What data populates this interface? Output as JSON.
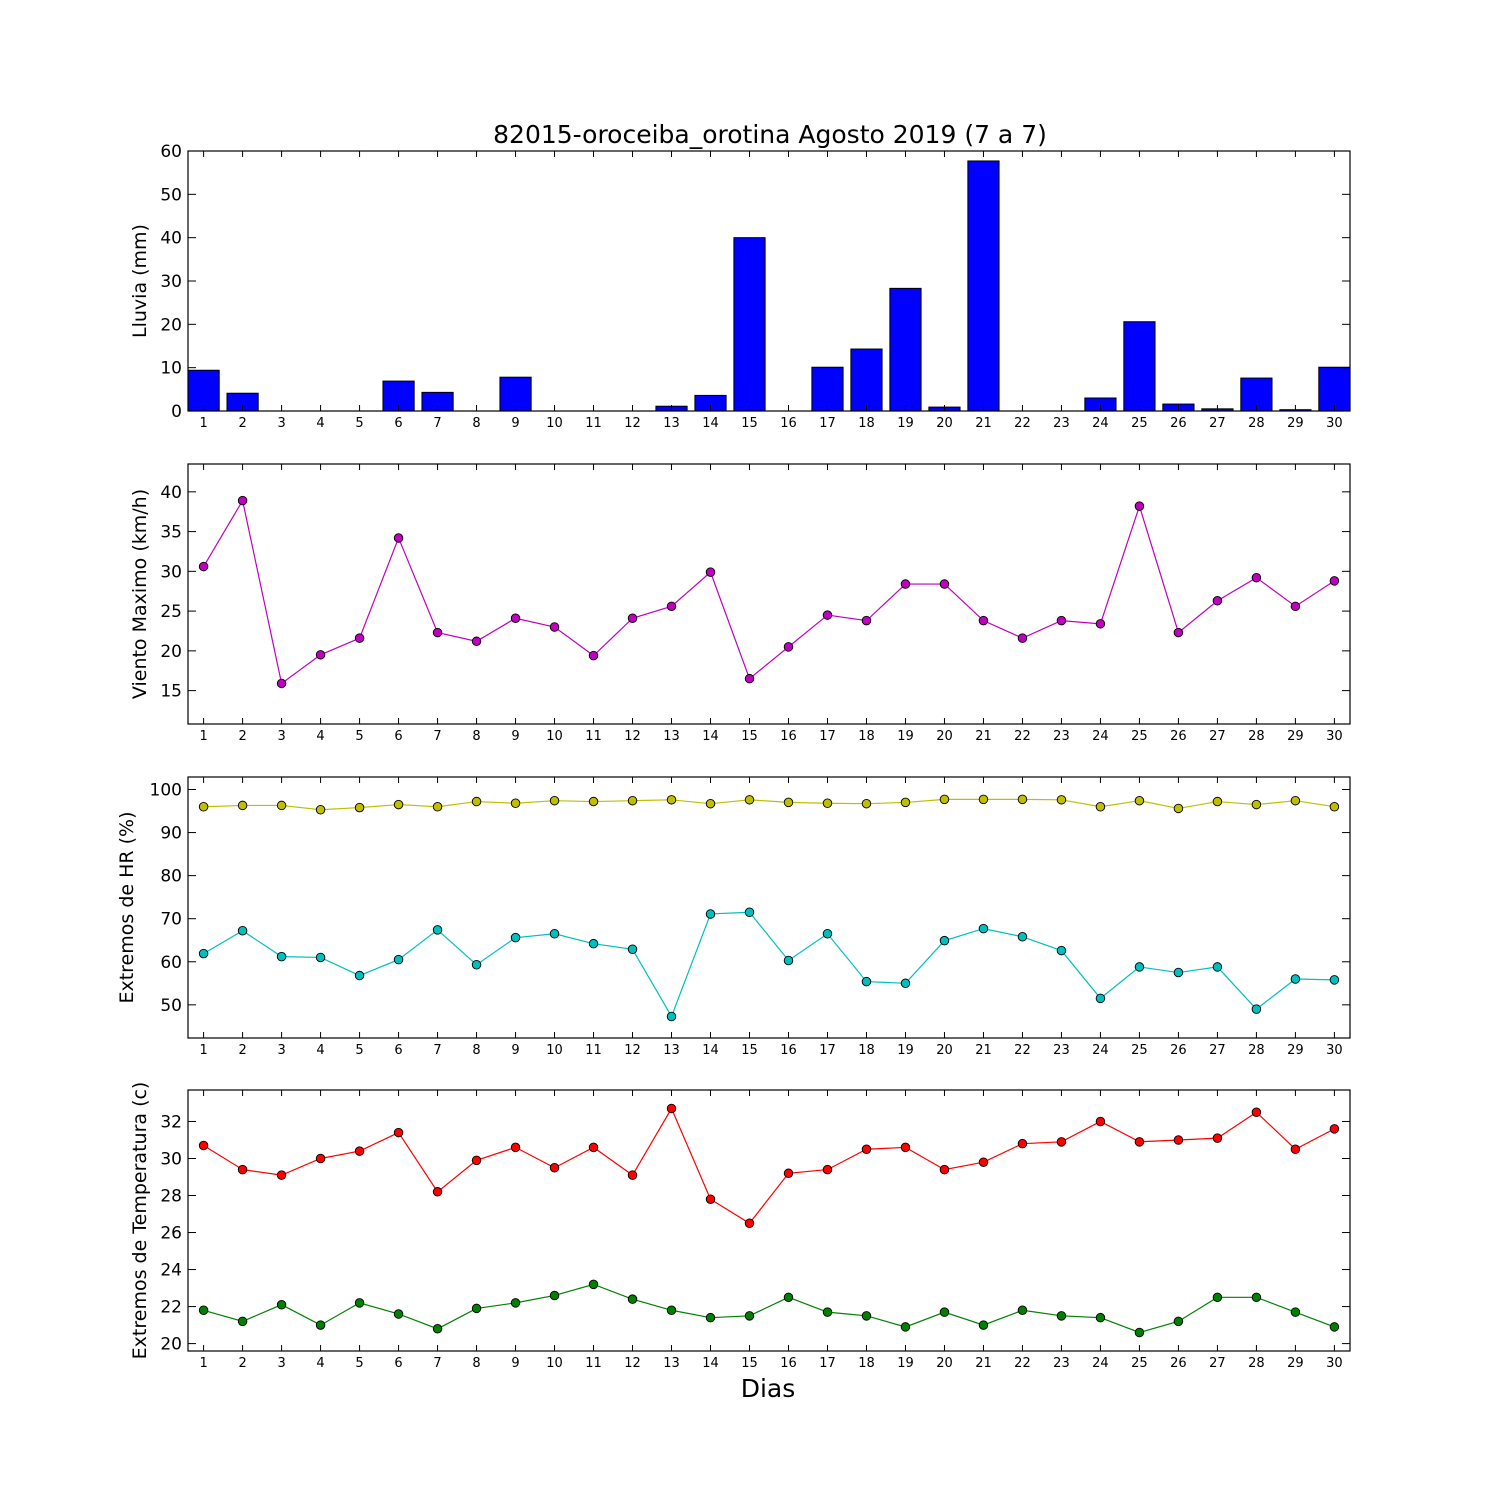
{
  "chart_data": [
    {
      "type": "bar",
      "title": "82015-oroceiba_orotina Agosto 2019  (7 a 7)",
      "ylabel": "Lluvia (mm)",
      "xlabel": "",
      "ylim": [
        0,
        60
      ],
      "yticks": [
        0,
        10,
        20,
        30,
        40,
        50,
        60
      ],
      "x": [
        1,
        2,
        3,
        4,
        5,
        6,
        7,
        8,
        9,
        10,
        11,
        12,
        13,
        14,
        15,
        16,
        17,
        18,
        19,
        20,
        21,
        22,
        23,
        24,
        25,
        26,
        27,
        28,
        29,
        30
      ],
      "series": [
        {
          "color": "#0000ff",
          "values": [
            9.4,
            4.1,
            0,
            0,
            0,
            6.9,
            4.3,
            0,
            7.8,
            0,
            0,
            0,
            1.1,
            3.6,
            40,
            0,
            10.1,
            14.3,
            28.3,
            0.9,
            57.7,
            0,
            0,
            3.0,
            20.6,
            1.6,
            0.5,
            7.6,
            0.3,
            10.1
          ]
        }
      ],
      "grid": false
    },
    {
      "type": "line",
      "title": "",
      "ylabel": "Viento Maximo (km/h)",
      "xlabel": "",
      "ylim": [
        10.8,
        43.5
      ],
      "yticks": [
        15,
        20,
        25,
        30,
        35,
        40
      ],
      "x": [
        1,
        2,
        3,
        4,
        5,
        6,
        7,
        8,
        9,
        10,
        11,
        12,
        13,
        14,
        15,
        16,
        17,
        18,
        19,
        20,
        21,
        22,
        23,
        24,
        25,
        26,
        27,
        28,
        29,
        30
      ],
      "series": [
        {
          "color": "#bf00bf",
          "values": [
            30.6,
            38.9,
            15.9,
            19.5,
            21.6,
            34.2,
            22.3,
            21.2,
            24.1,
            23.0,
            19.4,
            24.1,
            25.6,
            29.9,
            16.5,
            20.5,
            24.5,
            23.8,
            28.4,
            28.4,
            23.8,
            21.6,
            23.8,
            23.4,
            38.2,
            22.3,
            26.3,
            29.2,
            25.6,
            28.8
          ]
        }
      ],
      "grid": false
    },
    {
      "type": "line",
      "title": "",
      "ylabel": "Extremos de HR (%)",
      "xlabel": "",
      "ylim": [
        42.3,
        102.9
      ],
      "yticks": [
        50,
        60,
        70,
        80,
        90,
        100
      ],
      "x": [
        1,
        2,
        3,
        4,
        5,
        6,
        7,
        8,
        9,
        10,
        11,
        12,
        13,
        14,
        15,
        16,
        17,
        18,
        19,
        20,
        21,
        22,
        23,
        24,
        25,
        26,
        27,
        28,
        29,
        30
      ],
      "series": [
        {
          "color": "#bfbf00",
          "values": [
            96.0,
            96.3,
            96.3,
            95.3,
            95.8,
            96.5,
            96.0,
            97.2,
            96.8,
            97.4,
            97.2,
            97.4,
            97.6,
            96.7,
            97.6,
            97.0,
            96.8,
            96.7,
            97.0,
            97.7,
            97.7,
            97.7,
            97.6,
            96.0,
            97.4,
            95.6,
            97.2,
            96.5,
            97.4,
            96.0
          ]
        },
        {
          "color": "#00bfbf",
          "values": [
            61.9,
            67.2,
            61.2,
            61.0,
            56.8,
            60.5,
            67.4,
            59.3,
            65.6,
            66.5,
            64.2,
            62.9,
            47.3,
            71.1,
            71.5,
            60.3,
            66.5,
            55.4,
            55.0,
            64.9,
            67.7,
            65.8,
            62.6,
            51.5,
            58.8,
            57.5,
            58.8,
            49.0,
            56.0,
            55.8
          ]
        }
      ],
      "grid": false
    },
    {
      "type": "line",
      "title": "",
      "ylabel": "Extremos de Temperatura (c)",
      "xlabel": "Dias",
      "ylim": [
        19.6,
        33.7
      ],
      "yticks": [
        20,
        22,
        24,
        26,
        28,
        30,
        32
      ],
      "x": [
        1,
        2,
        3,
        4,
        5,
        6,
        7,
        8,
        9,
        10,
        11,
        12,
        13,
        14,
        15,
        16,
        17,
        18,
        19,
        20,
        21,
        22,
        23,
        24,
        25,
        26,
        27,
        28,
        29,
        30
      ],
      "series": [
        {
          "color": "#ff0000",
          "values": [
            30.7,
            29.4,
            29.1,
            30.0,
            30.4,
            31.4,
            28.2,
            29.9,
            30.6,
            29.5,
            30.6,
            29.1,
            32.7,
            27.8,
            26.5,
            29.2,
            29.4,
            30.5,
            30.6,
            29.4,
            29.8,
            30.8,
            30.9,
            32.0,
            30.9,
            31.0,
            31.1,
            32.5,
            30.5,
            31.6
          ]
        },
        {
          "color": "#008000",
          "values": [
            21.8,
            21.2,
            22.1,
            21.0,
            22.2,
            21.6,
            20.8,
            21.9,
            22.2,
            22.6,
            23.2,
            22.4,
            21.8,
            21.4,
            21.5,
            22.5,
            21.7,
            21.5,
            20.9,
            21.7,
            21.0,
            21.8,
            21.5,
            21.4,
            20.6,
            21.2,
            22.5,
            22.5,
            21.7,
            20.9
          ]
        }
      ],
      "grid": false
    }
  ]
}
